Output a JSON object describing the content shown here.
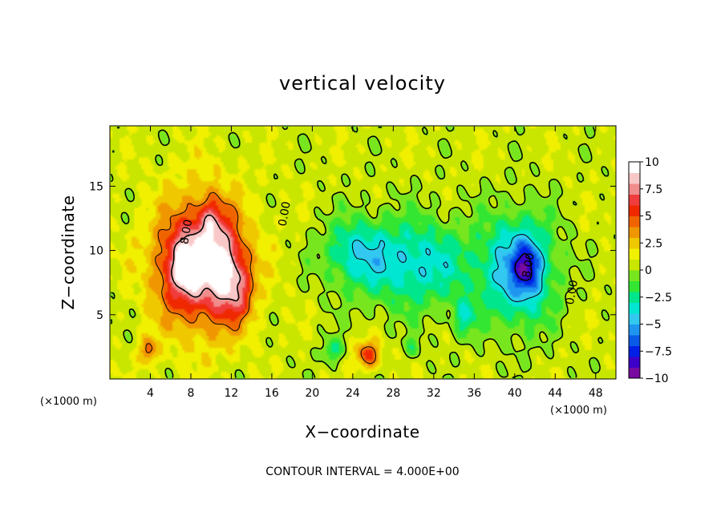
{
  "chart_data": {
    "type": "heatmap",
    "title": "vertical velocity",
    "xlabel": "X−coordinate",
    "ylabel": "Z−coordinate",
    "x_unit": "(×1000 m)",
    "y_unit": "(×1000 m)",
    "xlim": [
      0,
      50
    ],
    "ylim": [
      0,
      19.7
    ],
    "x_ticks": [
      4,
      8,
      12,
      16,
      20,
      24,
      28,
      32,
      36,
      40,
      44,
      48
    ],
    "y_ticks": [
      5,
      10,
      15
    ],
    "x_tick_labels": [
      "4",
      "8",
      "12",
      "16",
      "20",
      "24",
      "28",
      "32",
      "36",
      "40",
      "44",
      "48"
    ],
    "y_tick_labels": [
      "5",
      "10",
      "15"
    ],
    "colorbar": {
      "min": -10,
      "max": 10,
      "ticks": [
        10,
        7.5,
        5,
        2.5,
        0,
        -2.5,
        -5,
        -7.5,
        -10
      ],
      "tick_labels": [
        "10",
        "7.5",
        "5",
        "2.5",
        "0",
        "−2.5",
        "−5",
        "−7.5",
        "−10"
      ],
      "colors": [
        "#780aa0",
        "#3c00c8",
        "#0020e6",
        "#0a5ae8",
        "#1e96f0",
        "#32c8f0",
        "#00e6d2",
        "#00e68c",
        "#32e632",
        "#78e61e",
        "#c8e600",
        "#f0f000",
        "#f0c800",
        "#f09600",
        "#f06400",
        "#f02800",
        "#f03c3c",
        "#f08c8c",
        "#f8c8c8",
        "#ffffff"
      ]
    },
    "contour_labels": [
      {
        "text": "8.00",
        "x": 7.9,
        "y": 11.4
      },
      {
        "text": "0.00",
        "x": 17.6,
        "y": 12.8
      },
      {
        "text": "8.00",
        "x": 41.7,
        "y": 8.8
      },
      {
        "text": "0.00",
        "x": 46.0,
        "y": 6.7
      }
    ],
    "blobs": [
      {
        "x": 9,
        "y": 9,
        "sx": 4.6,
        "sy": 5.4,
        "a": 6
      },
      {
        "x": 7.5,
        "y": 8.8,
        "sx": 2.2,
        "sy": 2.8,
        "a": 5
      },
      {
        "x": 11.3,
        "y": 8.5,
        "sx": 1.7,
        "sy": 3.3,
        "a": 5
      },
      {
        "x": 9.9,
        "y": 12.3,
        "sx": 1.2,
        "sy": 1.8,
        "a": 3
      },
      {
        "x": 13.0,
        "y": 6.8,
        "sx": 1.4,
        "sy": 2.4,
        "a": 3
      },
      {
        "x": 25.5,
        "y": 1.9,
        "sx": 1.2,
        "sy": 1.1,
        "a": 5
      },
      {
        "x": 3.8,
        "y": 2.2,
        "sx": 0.8,
        "sy": 1.0,
        "a": 4
      },
      {
        "x": 30,
        "y": 9,
        "sx": 6,
        "sy": 3.5,
        "a": -4.5
      },
      {
        "x": 24,
        "y": 10,
        "sx": 3,
        "sy": 2.5,
        "a": -3
      },
      {
        "x": 40.5,
        "y": 8.5,
        "sx": 3.5,
        "sy": 4.2,
        "a": -6
      },
      {
        "x": 41.3,
        "y": 8.7,
        "sx": 1.2,
        "sy": 1.8,
        "a": -4
      },
      {
        "x": 35,
        "y": 4.8,
        "sx": 1.2,
        "sy": 1.5,
        "a": -3
      },
      {
        "x": 22,
        "y": 2.2,
        "sx": 1.0,
        "sy": 1.0,
        "a": -3
      },
      {
        "x": 30,
        "y": 2.5,
        "sx": 0.8,
        "sy": 0.8,
        "a": -2
      }
    ],
    "annotation": "CONTOUR INTERVAL = 4.000E+00"
  }
}
